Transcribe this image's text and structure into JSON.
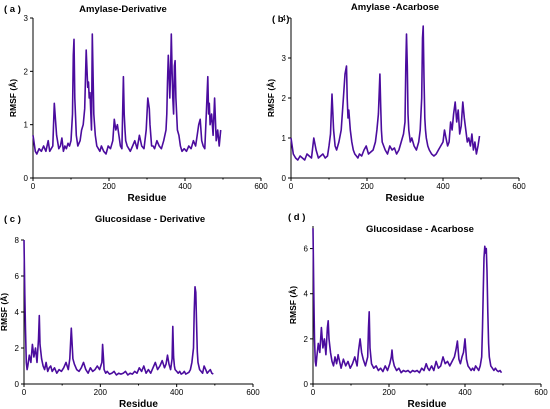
{
  "colors": {
    "series": "#4B0C9E"
  },
  "chart_data": [
    {
      "type": "line",
      "panel_tag": "( a )",
      "title": "Amylase-Derivative",
      "xlabel": "Residue",
      "ylabel": "RMSF (Å)",
      "xlim": [
        0,
        600
      ],
      "ylim": [
        0,
        3
      ],
      "xticks": [
        0,
        200,
        400,
        600
      ],
      "yticks": [
        0,
        1,
        2,
        3
      ],
      "grid": false,
      "series": [
        {
          "x": [
            0,
            6,
            10,
            16,
            22,
            28,
            34,
            40,
            44,
            48,
            52,
            56,
            62,
            68,
            72,
            76,
            80,
            84,
            88,
            92,
            96,
            100,
            104,
            106,
            108,
            110,
            114,
            118,
            124,
            128,
            132,
            136,
            140,
            144,
            146,
            148,
            150,
            154,
            156,
            160,
            164,
            168,
            172,
            176,
            180,
            186,
            192,
            198,
            204,
            210,
            214,
            218,
            222,
            226,
            230,
            234,
            238,
            240,
            242,
            244,
            248,
            252,
            256,
            262,
            268,
            274,
            280,
            286,
            292,
            298,
            302,
            306,
            308,
            310,
            312,
            316,
            320,
            326,
            332,
            338,
            344,
            350,
            352,
            354,
            356,
            358,
            360,
            362,
            364,
            366,
            368,
            370,
            372,
            374,
            376,
            380,
            384,
            388,
            392,
            398,
            404,
            410,
            416,
            422,
            428,
            432,
            436,
            440,
            444,
            448,
            452,
            456,
            460,
            462,
            464,
            466,
            470,
            474,
            478,
            482,
            486,
            490,
            494
          ],
          "y": [
            0.8,
            0.5,
            0.45,
            0.55,
            0.5,
            0.6,
            0.5,
            0.7,
            0.5,
            0.55,
            0.6,
            1.4,
            0.8,
            0.55,
            0.6,
            0.75,
            0.5,
            0.6,
            0.55,
            0.65,
            0.6,
            0.7,
            1.2,
            2.3,
            2.6,
            1.5,
            0.8,
            0.6,
            0.7,
            0.9,
            1.0,
            1.3,
            2.4,
            1.7,
            1.8,
            1.5,
            1.6,
            0.9,
            2.7,
            1.2,
            0.8,
            0.6,
            0.55,
            0.5,
            0.6,
            0.5,
            0.45,
            0.6,
            0.55,
            0.7,
            1.1,
            0.9,
            1.0,
            0.8,
            0.6,
            0.55,
            1.9,
            1.2,
            0.9,
            0.7,
            0.6,
            0.55,
            0.5,
            0.6,
            0.7,
            0.55,
            0.8,
            0.6,
            0.55,
            0.9,
            1.5,
            1.3,
            1.0,
            0.8,
            0.6,
            0.6,
            0.55,
            0.7,
            0.6,
            0.55,
            0.7,
            0.9,
            1.2,
            1.8,
            2.3,
            2.0,
            1.5,
            2.0,
            2.7,
            2.0,
            1.5,
            1.2,
            2.1,
            2.2,
            1.5,
            0.9,
            0.8,
            0.6,
            0.5,
            0.55,
            0.5,
            0.6,
            0.55,
            0.7,
            0.6,
            0.8,
            1.0,
            1.1,
            0.7,
            0.6,
            0.55,
            1.2,
            1.9,
            1.2,
            1.4,
            1.0,
            1.2,
            0.8,
            1.5,
            0.7,
            0.9,
            0.6,
            0.9
          ]
        }
      ]
    },
    {
      "type": "line",
      "panel_tag": "( b )",
      "title": "Amylase -Acarbose",
      "xlabel": "Residue",
      "ylabel": "RMSF (Å)",
      "xlim": [
        0,
        600
      ],
      "ylim": [
        0,
        4
      ],
      "xticks": [
        0,
        200,
        400,
        600
      ],
      "yticks": [
        0,
        1,
        2,
        3,
        4
      ],
      "grid": false,
      "series": [
        {
          "x": [
            0,
            6,
            12,
            18,
            24,
            30,
            36,
            42,
            48,
            54,
            60,
            66,
            72,
            78,
            84,
            90,
            96,
            100,
            104,
            108,
            112,
            116,
            120,
            126,
            132,
            138,
            142,
            146,
            148,
            150,
            152,
            156,
            160,
            164,
            168,
            172,
            176,
            180,
            186,
            192,
            198,
            204,
            210,
            216,
            222,
            226,
            230,
            234,
            236,
            238,
            240,
            244,
            248,
            254,
            260,
            266,
            272,
            278,
            284,
            290,
            296,
            300,
            302,
            304,
            306,
            308,
            310,
            314,
            318,
            324,
            330,
            336,
            340,
            344,
            346,
            348,
            350,
            352,
            354,
            356,
            360,
            364,
            370,
            376,
            382,
            388,
            394,
            400,
            404,
            408,
            412,
            416,
            420,
            424,
            428,
            432,
            436,
            440,
            444,
            448,
            452,
            456,
            460,
            464,
            468,
            472,
            476,
            480,
            484,
            488,
            492,
            496
          ],
          "y": [
            1.0,
            0.6,
            0.5,
            0.45,
            0.55,
            0.5,
            0.45,
            0.6,
            0.55,
            0.5,
            1.0,
            0.7,
            0.5,
            0.55,
            0.6,
            0.5,
            0.55,
            0.8,
            1.1,
            2.1,
            1.2,
            0.8,
            0.7,
            0.9,
            1.2,
            2.0,
            2.6,
            2.8,
            2.0,
            1.5,
            1.7,
            1.2,
            0.9,
            0.7,
            0.6,
            0.55,
            0.5,
            0.6,
            0.55,
            0.7,
            0.8,
            0.6,
            0.65,
            0.7,
            0.9,
            1.2,
            1.6,
            2.6,
            1.8,
            1.2,
            0.9,
            0.8,
            0.7,
            0.6,
            0.8,
            0.7,
            0.75,
            0.6,
            0.7,
            0.9,
            1.1,
            1.4,
            2.8,
            3.6,
            2.8,
            1.6,
            1.2,
            0.9,
            1.0,
            0.8,
            0.7,
            0.9,
            1.2,
            2.0,
            3.5,
            3.8,
            2.5,
            1.5,
            1.2,
            1.0,
            0.8,
            0.7,
            0.6,
            0.55,
            0.6,
            0.7,
            0.8,
            0.9,
            1.2,
            1.0,
            0.8,
            0.9,
            1.4,
            1.2,
            1.6,
            1.9,
            1.4,
            1.7,
            1.1,
            1.3,
            1.9,
            1.5,
            1.2,
            0.9,
            1.0,
            0.8,
            1.1,
            0.7,
            0.9,
            0.6,
            0.8,
            1.05
          ]
        }
      ]
    },
    {
      "type": "line",
      "panel_tag": "( c )",
      "title": "Glucosidase -  Derivative",
      "xlabel": "Residue",
      "ylabel": "RMSF (Å)",
      "xlim": [
        0,
        600
      ],
      "ylim": [
        0,
        8
      ],
      "xticks": [
        0,
        200,
        400,
        600
      ],
      "yticks": [
        0,
        2,
        4,
        6,
        8
      ],
      "grid": false,
      "series": [
        {
          "x": [
            0,
            2,
            4,
            6,
            8,
            10,
            14,
            18,
            22,
            26,
            30,
            34,
            38,
            40,
            42,
            46,
            50,
            54,
            58,
            62,
            66,
            70,
            74,
            80,
            86,
            92,
            98,
            104,
            110,
            116,
            120,
            124,
            128,
            132,
            138,
            144,
            150,
            156,
            162,
            168,
            174,
            180,
            186,
            192,
            198,
            204,
            206,
            208,
            210,
            214,
            218,
            224,
            230,
            236,
            242,
            248,
            254,
            260,
            266,
            272,
            278,
            284,
            290,
            296,
            302,
            308,
            314,
            320,
            326,
            332,
            338,
            344,
            350,
            356,
            362,
            368,
            372,
            376,
            380,
            384,
            388,
            390,
            392,
            394,
            396,
            400,
            404,
            408,
            412,
            416,
            420,
            424,
            428,
            432,
            436,
            440,
            444,
            446,
            448,
            450,
            452,
            454,
            456,
            460,
            464,
            468,
            472,
            476,
            480,
            484,
            488,
            492,
            496
          ],
          "y": [
            8.0,
            5.0,
            3.0,
            1.2,
            0.8,
            1.0,
            1.6,
            1.2,
            2.2,
            1.5,
            2.0,
            1.2,
            2.5,
            3.8,
            2.2,
            1.4,
            1.0,
            0.8,
            1.2,
            0.7,
            0.9,
            1.0,
            0.7,
            0.9,
            0.6,
            0.8,
            0.7,
            0.9,
            1.2,
            0.8,
            1.4,
            3.1,
            1.4,
            1.1,
            0.8,
            0.7,
            0.9,
            1.2,
            0.8,
            0.6,
            0.9,
            0.7,
            0.8,
            1.0,
            0.8,
            1.2,
            2.2,
            1.5,
            0.8,
            0.6,
            0.7,
            0.55,
            0.6,
            0.7,
            0.5,
            0.6,
            0.55,
            0.6,
            0.7,
            0.5,
            0.6,
            0.55,
            0.7,
            0.6,
            0.9,
            0.7,
            1.0,
            0.6,
            0.8,
            0.6,
            0.9,
            1.2,
            0.8,
            1.0,
            1.3,
            0.9,
            1.1,
            1.6,
            1.1,
            0.8,
            1.4,
            3.2,
            1.5,
            1.0,
            0.8,
            0.7,
            0.6,
            0.7,
            0.55,
            0.6,
            0.7,
            0.55,
            0.6,
            0.65,
            0.8,
            1.2,
            2.0,
            4.0,
            5.4,
            5.1,
            3.5,
            1.8,
            1.2,
            0.8,
            0.7,
            0.6,
            1.0,
            0.8,
            0.6,
            0.7,
            0.8,
            0.6,
            0.55
          ]
        }
      ]
    },
    {
      "type": "line",
      "panel_tag": "( d )",
      "title": "Glucosidase - Acarbose",
      "xlabel": "Residue",
      "ylabel": "RMSF (Å)",
      "xlim": [
        0,
        600
      ],
      "ylim": [
        0,
        7
      ],
      "xticks": [
        0,
        200,
        400,
        600
      ],
      "yticks": [
        0,
        2,
        4,
        6
      ],
      "grid": false,
      "series": [
        {
          "x": [
            0,
            2,
            4,
            6,
            8,
            10,
            14,
            18,
            22,
            26,
            30,
            34,
            38,
            40,
            42,
            46,
            50,
            54,
            58,
            62,
            66,
            70,
            74,
            80,
            86,
            92,
            98,
            104,
            110,
            116,
            120,
            124,
            128,
            132,
            138,
            144,
            146,
            148,
            150,
            154,
            160,
            166,
            172,
            178,
            184,
            190,
            196,
            202,
            206,
            208,
            210,
            214,
            220,
            226,
            232,
            238,
            244,
            250,
            256,
            262,
            268,
            274,
            280,
            286,
            292,
            298,
            302,
            306,
            312,
            318,
            324,
            330,
            336,
            342,
            348,
            354,
            360,
            366,
            372,
            376,
            380,
            384,
            388,
            392,
            396,
            400,
            404,
            408,
            412,
            416,
            420,
            424,
            428,
            432,
            436,
            440,
            444,
            446,
            448,
            450,
            452,
            454,
            456,
            458,
            460,
            462,
            464,
            468,
            472,
            476,
            480,
            484,
            488,
            492,
            496
          ],
          "y": [
            6.9,
            4.0,
            2.0,
            1.0,
            0.8,
            1.2,
            1.8,
            1.4,
            2.5,
            1.6,
            2.0,
            1.3,
            2.5,
            2.8,
            2.0,
            1.4,
            1.0,
            0.8,
            1.2,
            0.9,
            1.3,
            1.0,
            0.7,
            1.1,
            0.8,
            1.0,
            0.7,
            0.9,
            1.2,
            0.8,
            1.5,
            2.0,
            1.4,
            1.1,
            0.8,
            1.2,
            2.5,
            3.2,
            1.6,
            0.9,
            0.7,
            0.8,
            0.6,
            0.7,
            0.55,
            0.8,
            0.6,
            0.9,
            1.2,
            1.5,
            1.1,
            0.8,
            0.6,
            0.7,
            0.5,
            0.6,
            0.55,
            0.6,
            0.5,
            0.6,
            0.55,
            0.6,
            0.5,
            0.7,
            0.6,
            0.9,
            0.7,
            0.6,
            0.8,
            0.6,
            1.0,
            0.7,
            0.8,
            1.2,
            0.9,
            1.0,
            0.8,
            1.0,
            1.2,
            1.5,
            1.9,
            1.1,
            0.9,
            1.2,
            1.4,
            2.0,
            1.1,
            0.8,
            0.7,
            0.6,
            0.7,
            0.6,
            0.8,
            0.7,
            0.6,
            0.8,
            1.2,
            2.5,
            4.0,
            5.6,
            6.1,
            5.8,
            6.0,
            5.0,
            3.2,
            1.8,
            1.2,
            0.8,
            0.7,
            0.6,
            0.7,
            0.6,
            0.55,
            0.6,
            0.5
          ]
        }
      ]
    }
  ]
}
